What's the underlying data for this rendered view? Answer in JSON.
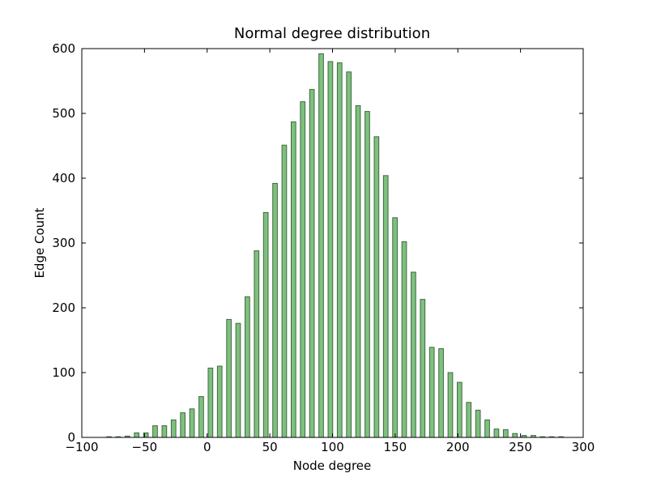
{
  "chart_data": {
    "type": "histogram",
    "title": "Normal degree distribution",
    "x_label": "Node degree",
    "y_label": "Edge Count",
    "bins": [
      -82,
      -74.64,
      -67.28,
      -59.92,
      -52.56,
      -45.2,
      -37.84,
      -30.48,
      -23.12,
      -15.76,
      -8.4,
      -1.04,
      6.32,
      13.68,
      21.04,
      28.4,
      35.76,
      43.12,
      50.48,
      57.84,
      65.2,
      72.56,
      79.92,
      87.28,
      94.64,
      102,
      109.36,
      116.72,
      124.08,
      131.44,
      138.8,
      146.16,
      153.52,
      160.88,
      168.24,
      175.6,
      182.96,
      190.32,
      197.68,
      205.04,
      212.4,
      219.76,
      227.12,
      234.48,
      241.84,
      249.2,
      256.56,
      263.92,
      271.28,
      278.64,
      286
    ],
    "values": [
      1,
      1,
      2,
      7,
      7,
      18,
      18,
      27,
      38,
      44,
      63,
      107,
      110,
      182,
      176,
      217,
      288,
      347,
      392,
      451,
      487,
      518,
      537,
      592,
      580,
      578,
      564,
      512,
      503,
      464,
      404,
      339,
      302,
      255,
      213,
      139,
      137,
      100,
      85,
      54,
      42,
      27,
      13,
      12,
      6,
      3,
      3,
      1,
      1,
      1
    ],
    "color": "#7fbf7f",
    "edge_color": "#3d6b3d",
    "xlim": [
      -100,
      300
    ],
    "xticks": [
      {
        "value": -100,
        "label": "−100"
      },
      {
        "value": -50,
        "label": "−50"
      },
      0,
      50,
      100,
      150,
      200,
      250,
      300
    ],
    "ylim": [
      0,
      600
    ],
    "yticks": [
      0,
      100,
      200,
      300,
      400,
      500,
      600
    ]
  }
}
